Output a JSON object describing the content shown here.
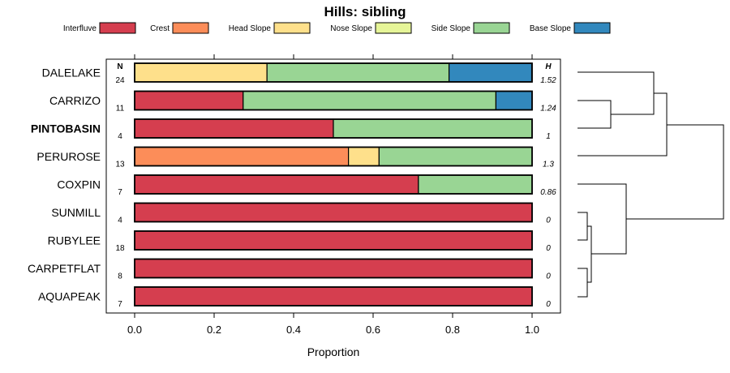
{
  "chart_data": {
    "type": "bar",
    "stacked": true,
    "orientation": "horizontal",
    "title": "Hills: sibling",
    "xlabel": "Proportion",
    "ylabel": "",
    "xlim": [
      0,
      1
    ],
    "x_ticks": [
      "0.0",
      "0.2",
      "0.4",
      "0.6",
      "0.8",
      "1.0"
    ],
    "x_tick_values": [
      0,
      0.2,
      0.4,
      0.6,
      0.8,
      1.0
    ],
    "n_header": "N",
    "h_header": "H",
    "legend": [
      {
        "name": "Interfluve",
        "color": "#D53E4F"
      },
      {
        "name": "Crest",
        "color": "#FC8D59"
      },
      {
        "name": "Head Slope",
        "color": "#FEE08B"
      },
      {
        "name": "Nose Slope",
        "color": "#E6F598"
      },
      {
        "name": "Side Slope",
        "color": "#99D594"
      },
      {
        "name": "Base Slope",
        "color": "#3288BD"
      }
    ],
    "categories": [
      "DALELAKE",
      "CARRIZO",
      "PINTOBASIN",
      "PERUROSE",
      "COXPIN",
      "SUNMILL",
      "RUBYLEE",
      "CARPETFLAT",
      "AQUAPEAK"
    ],
    "highlight": "PINTOBASIN",
    "n": [
      "24",
      "11",
      "4",
      "13",
      "7",
      "4",
      "18",
      "8",
      "7"
    ],
    "h": [
      "1.52",
      "1.24",
      "1",
      "1.3",
      "0.86",
      "0",
      "0",
      "0",
      "0"
    ],
    "series": [
      {
        "name": "Interfluve",
        "values": [
          0,
          0.273,
          0.5,
          0,
          0.714,
          1,
          1,
          1,
          1
        ]
      },
      {
        "name": "Crest",
        "values": [
          0,
          0,
          0,
          0.538,
          0,
          0,
          0,
          0,
          0
        ]
      },
      {
        "name": "Head Slope",
        "values": [
          0.333,
          0,
          0,
          0.077,
          0,
          0,
          0,
          0,
          0
        ]
      },
      {
        "name": "Nose Slope",
        "values": [
          0,
          0,
          0,
          0,
          0,
          0,
          0,
          0,
          0
        ]
      },
      {
        "name": "Side Slope",
        "values": [
          0.458,
          0.636,
          0.5,
          0.385,
          0.286,
          0,
          0,
          0,
          0
        ]
      },
      {
        "name": "Base Slope",
        "values": [
          0.208,
          0.091,
          0,
          0,
          0,
          0,
          0,
          0,
          0
        ]
      }
    ]
  }
}
